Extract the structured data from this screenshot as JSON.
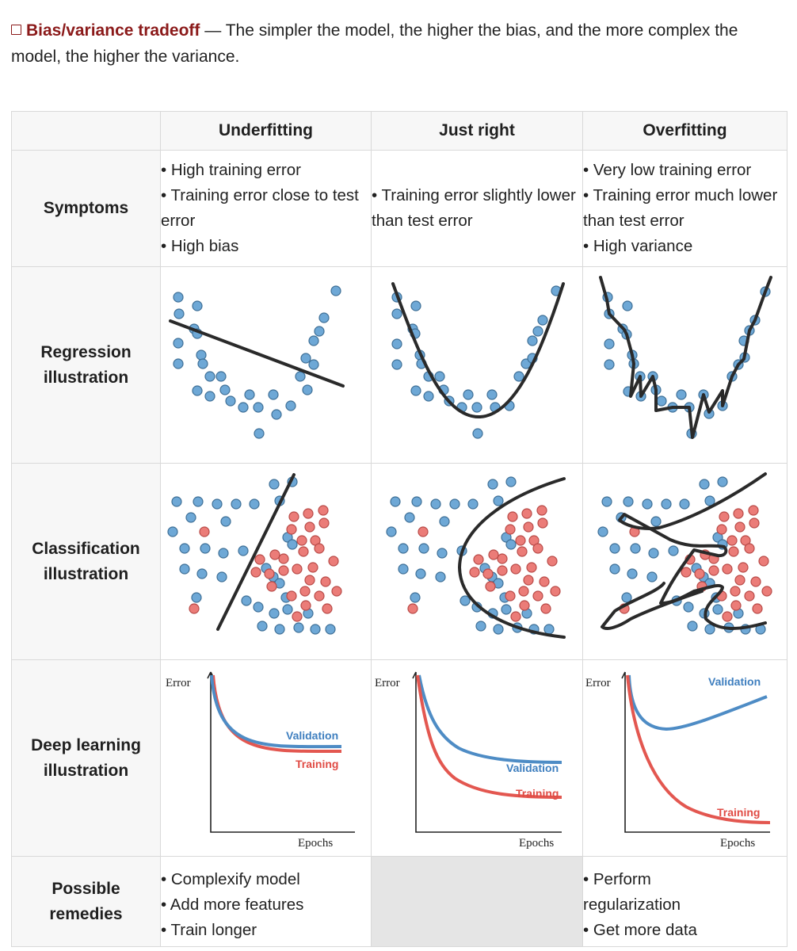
{
  "intro": {
    "term": "Bias/variance tradeoff",
    "text": " — The simpler the model, the higher the bias, and the more complex the model, the higher the variance."
  },
  "columns": [
    "Underfitting",
    "Just right",
    "Overfitting"
  ],
  "rows": {
    "symptoms": {
      "label": "Symptoms",
      "underfitting": [
        "• High training error",
        "• Training error close to test error",
        "• High bias"
      ],
      "just_right": [
        "• Training error slightly lower than test error"
      ],
      "overfitting": [
        "• Very low training error",
        "• Training error much lower than test error",
        "• High variance"
      ]
    },
    "regression": {
      "label_1": "Regression",
      "label_2": "illustration"
    },
    "classification": {
      "label_1": "Classification",
      "label_2": "illustration"
    },
    "deep_learning": {
      "label_1": "Deep learning",
      "label_2": "illustration",
      "y_axis": "Error",
      "x_axis": "Epochs",
      "validation": "Validation",
      "training": "Training"
    },
    "remedies": {
      "label_1": "Possible",
      "label_2": "remedies",
      "underfitting": [
        "• Complexify model",
        "• Add more features",
        "• Train longer"
      ],
      "overfitting": [
        "• Perform regularization",
        "• Get more data"
      ]
    }
  },
  "colors": {
    "blue_points": "#6ea8d6",
    "red_points": "#eb7c78",
    "validation": "#4e8cc5",
    "training": "#e35750",
    "term": "#8b1a1a"
  }
}
